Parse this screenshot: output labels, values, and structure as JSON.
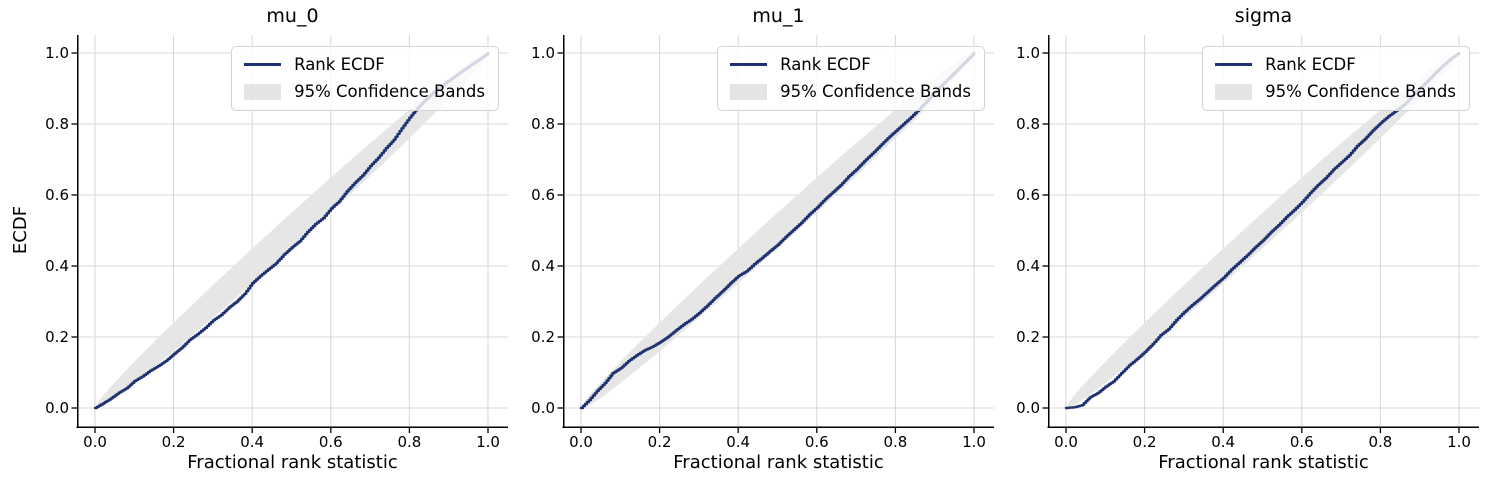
{
  "figure": {
    "x_label": "Fractional rank statistic",
    "y_label": "ECDF",
    "legend": {
      "line_label": "Rank ECDF",
      "band_label": "95% Confidence Bands"
    },
    "ticks": {
      "values": [
        0,
        0.2,
        0.4,
        0.6,
        0.8,
        1.0
      ],
      "x_labels": [
        "0.0",
        "0.2",
        "0.4",
        "0.6",
        "0.8",
        "1.0"
      ],
      "y_labels": [
        "0.0",
        "0.2",
        "0.4",
        "0.6",
        "0.8",
        "1.0"
      ]
    },
    "colors": {
      "line": "#1e3170",
      "band": "#e6e6e6",
      "grid": "#d9d9d9",
      "spine": "#000000",
      "legend_border": "#d2d2d2",
      "legend_background": "rgba(255,255,255,0.8)"
    }
  },
  "chart_data": [
    {
      "type": "line",
      "title": "mu_0",
      "xlabel": "Fractional rank statistic",
      "ylabel": "ECDF",
      "xlim": [
        -0.05,
        1.05
      ],
      "ylim": [
        -0.05,
        1.05
      ],
      "grid": true,
      "legend_position": "upper right",
      "band": {
        "name": "95% Confidence Bands",
        "level": 0.95,
        "half_width_coef": 0.1
      },
      "series": [
        {
          "name": "Rank ECDF",
          "x": [
            0,
            0.02,
            0.04,
            0.06,
            0.08,
            0.1,
            0.12,
            0.14,
            0.16,
            0.18,
            0.2,
            0.22,
            0.24,
            0.26,
            0.28,
            0.3,
            0.32,
            0.34,
            0.36,
            0.38,
            0.4,
            0.42,
            0.44,
            0.46,
            0.48,
            0.5,
            0.52,
            0.54,
            0.56,
            0.58,
            0.6,
            0.62,
            0.64,
            0.66,
            0.68,
            0.7,
            0.72,
            0.74,
            0.76,
            0.78,
            0.8,
            0.82,
            0.84,
            0.86,
            0.88,
            0.9,
            0.92,
            0.94,
            0.96,
            0.98,
            1.0
          ],
          "y": [
            0,
            0.013,
            0.027,
            0.043,
            0.056,
            0.076,
            0.089,
            0.105,
            0.118,
            0.133,
            0.152,
            0.17,
            0.192,
            0.208,
            0.226,
            0.247,
            0.262,
            0.283,
            0.3,
            0.322,
            0.352,
            0.372,
            0.39,
            0.408,
            0.432,
            0.452,
            0.47,
            0.496,
            0.518,
            0.535,
            0.562,
            0.582,
            0.61,
            0.634,
            0.655,
            0.682,
            0.705,
            0.732,
            0.756,
            0.788,
            0.818,
            0.845,
            0.868,
            0.888,
            0.906,
            0.922,
            0.938,
            0.954,
            0.969,
            0.984,
            1.0
          ]
        }
      ]
    },
    {
      "type": "line",
      "title": "mu_1",
      "xlabel": "Fractional rank statistic",
      "ylabel": "ECDF",
      "xlim": [
        -0.05,
        1.05
      ],
      "ylim": [
        -0.05,
        1.05
      ],
      "grid": true,
      "legend_position": "upper right",
      "band": {
        "name": "95% Confidence Bands",
        "level": 0.95,
        "half_width_coef": 0.1
      },
      "series": [
        {
          "name": "Rank ECDF",
          "x": [
            0,
            0.02,
            0.04,
            0.06,
            0.08,
            0.1,
            0.12,
            0.14,
            0.16,
            0.18,
            0.2,
            0.22,
            0.24,
            0.26,
            0.28,
            0.3,
            0.32,
            0.34,
            0.36,
            0.38,
            0.4,
            0.42,
            0.44,
            0.46,
            0.48,
            0.5,
            0.52,
            0.54,
            0.56,
            0.58,
            0.6,
            0.62,
            0.64,
            0.66,
            0.68,
            0.7,
            0.72,
            0.74,
            0.76,
            0.78,
            0.8,
            0.82,
            0.84,
            0.86,
            0.88,
            0.9,
            0.92,
            0.94,
            0.96,
            0.98,
            1.0
          ],
          "y": [
            0,
            0.022,
            0.048,
            0.07,
            0.098,
            0.112,
            0.132,
            0.148,
            0.162,
            0.172,
            0.185,
            0.2,
            0.218,
            0.235,
            0.25,
            0.268,
            0.288,
            0.31,
            0.33,
            0.352,
            0.372,
            0.385,
            0.405,
            0.423,
            0.442,
            0.46,
            0.482,
            0.502,
            0.522,
            0.545,
            0.565,
            0.588,
            0.608,
            0.628,
            0.652,
            0.672,
            0.695,
            0.716,
            0.738,
            0.76,
            0.78,
            0.8,
            0.82,
            0.842,
            0.865,
            0.89,
            0.912,
            0.934,
            0.956,
            0.978,
            1.0
          ]
        }
      ]
    },
    {
      "type": "line",
      "title": "sigma",
      "xlabel": "Fractional rank statistic",
      "ylabel": "ECDF",
      "xlim": [
        -0.05,
        1.05
      ],
      "ylim": [
        -0.05,
        1.05
      ],
      "grid": true,
      "legend_position": "upper right",
      "band": {
        "name": "95% Confidence Bands",
        "level": 0.95,
        "half_width_coef": 0.1
      },
      "series": [
        {
          "name": "Rank ECDF",
          "x": [
            0,
            0.02,
            0.04,
            0.06,
            0.08,
            0.1,
            0.12,
            0.14,
            0.16,
            0.18,
            0.2,
            0.22,
            0.24,
            0.26,
            0.28,
            0.3,
            0.32,
            0.34,
            0.36,
            0.38,
            0.4,
            0.42,
            0.44,
            0.46,
            0.48,
            0.5,
            0.52,
            0.54,
            0.56,
            0.58,
            0.6,
            0.62,
            0.64,
            0.66,
            0.68,
            0.7,
            0.72,
            0.74,
            0.76,
            0.78,
            0.8,
            0.82,
            0.84,
            0.86,
            0.88,
            0.9,
            0.92,
            0.94,
            0.96,
            0.98,
            1.0
          ],
          "y": [
            0,
            0.002,
            0.008,
            0.03,
            0.042,
            0.06,
            0.075,
            0.098,
            0.12,
            0.138,
            0.158,
            0.18,
            0.205,
            0.222,
            0.248,
            0.27,
            0.29,
            0.308,
            0.328,
            0.348,
            0.367,
            0.39,
            0.41,
            0.43,
            0.452,
            0.472,
            0.495,
            0.515,
            0.538,
            0.558,
            0.58,
            0.605,
            0.628,
            0.648,
            0.672,
            0.692,
            0.712,
            0.738,
            0.758,
            0.782,
            0.803,
            0.822,
            0.838,
            0.855,
            0.878,
            0.9,
            0.922,
            0.945,
            0.966,
            0.985,
            1.0
          ]
        }
      ]
    }
  ]
}
